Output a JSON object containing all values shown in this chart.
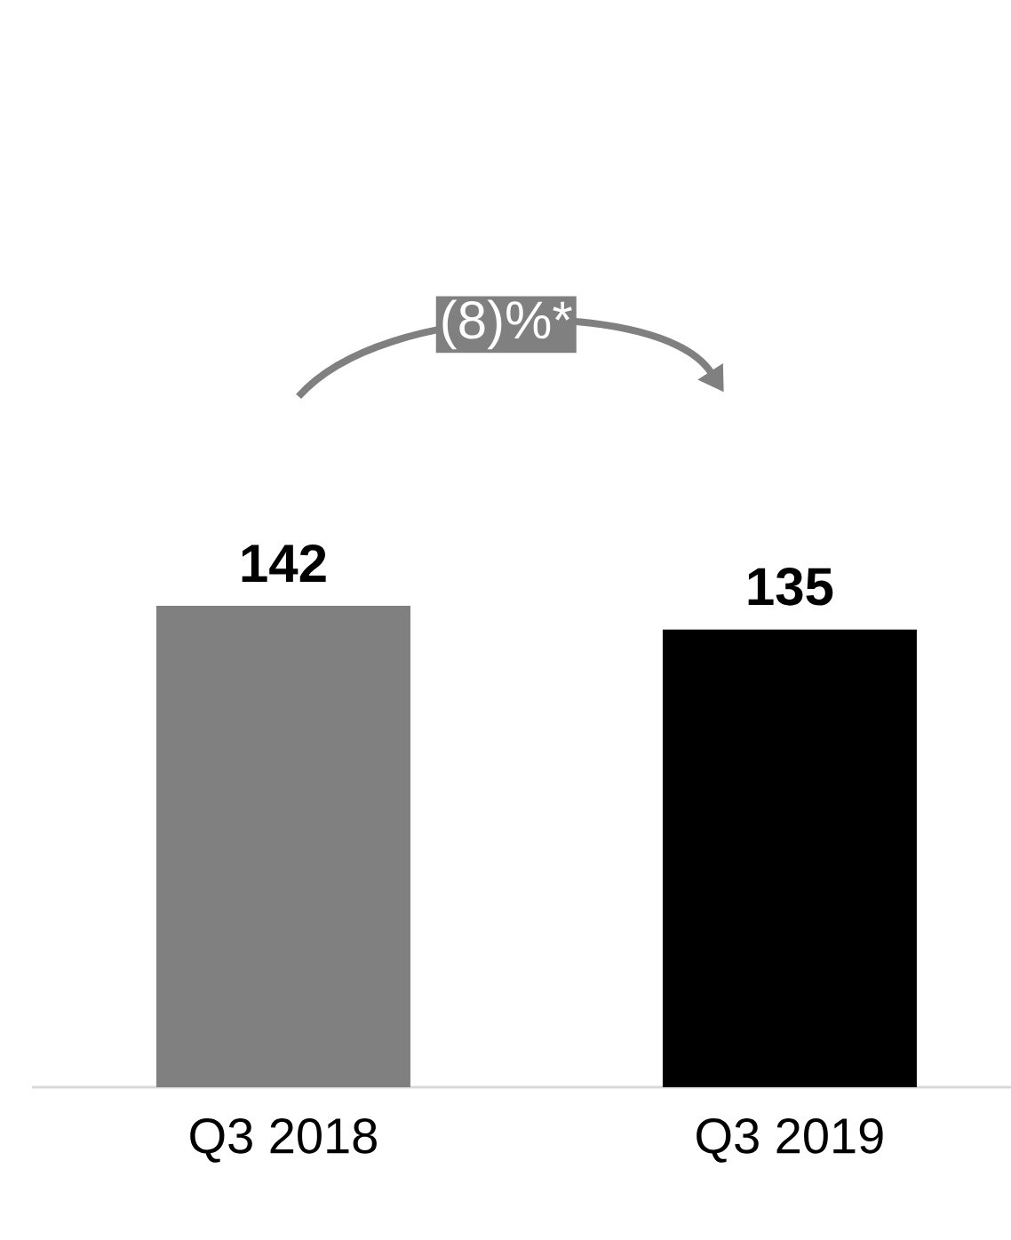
{
  "chart_data": {
    "type": "bar",
    "categories": [
      "Q3 2018",
      "Q3 2019"
    ],
    "values": [
      142,
      135
    ],
    "colors": [
      "#808080",
      "#000000"
    ],
    "data_labels": true,
    "annotations": [
      "(8)%*"
    ]
  }
}
